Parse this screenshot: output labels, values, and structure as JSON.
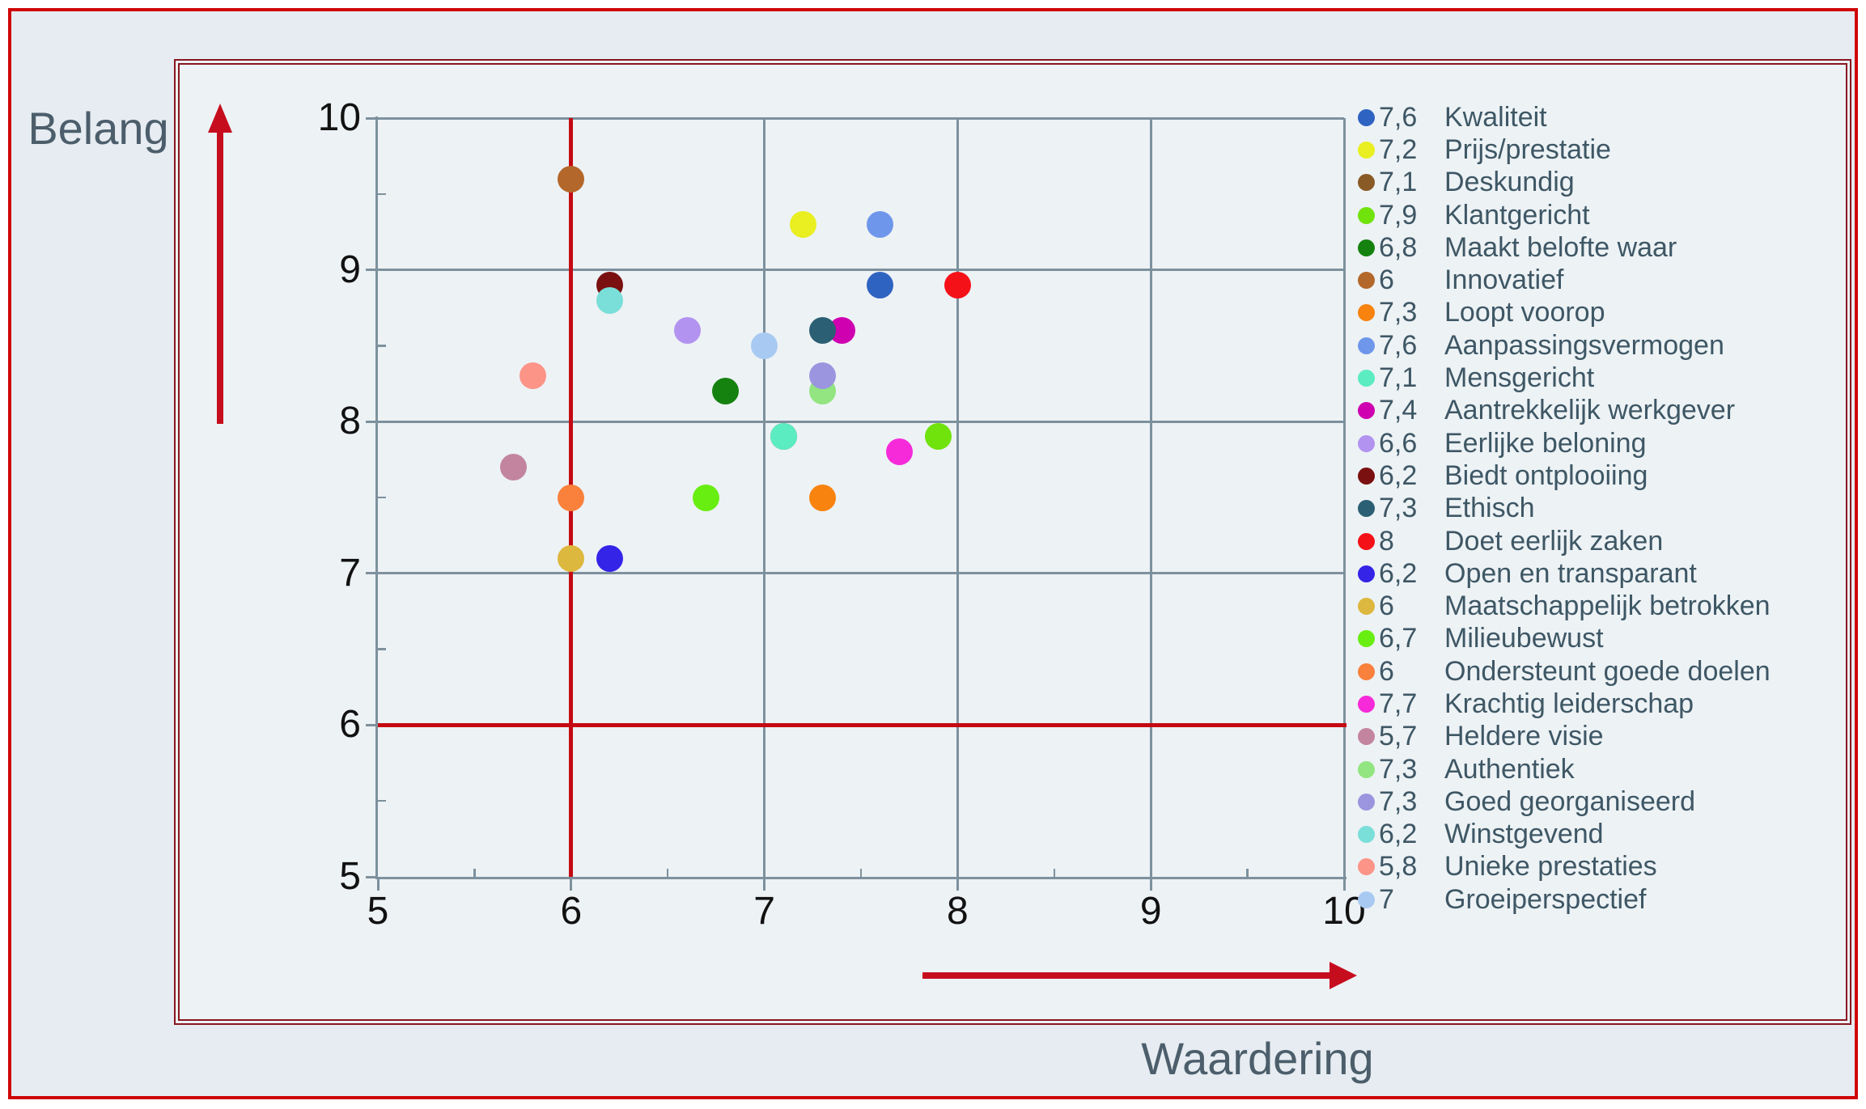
{
  "frame": {
    "ylabel": "Belang",
    "xlabel": "Waardering"
  },
  "colors": {
    "outer_border": "#cf0508",
    "inner_border": "#8a1620",
    "page_bg": "#e6ecf1",
    "panel_bg": "#edf2f5",
    "grid": "#7d919d",
    "crosshair": "#c40a12",
    "arrow": "#c60d1e",
    "tick_text": "#111111",
    "legend_text": "#3e5765",
    "title_text": "#4c5e6b"
  },
  "chart_data": {
    "type": "scatter",
    "xlabel": "Waardering",
    "ylabel": "Belang",
    "xlim": [
      5,
      10
    ],
    "ylim": [
      5,
      10
    ],
    "x_ticks": [
      5,
      6,
      7,
      8,
      9,
      10
    ],
    "y_ticks": [
      10,
      9,
      8,
      7,
      6,
      5
    ],
    "minor_tick_step": 0.5,
    "grid": true,
    "legend_position": "right",
    "crosshair": {
      "x": 6,
      "y": 6
    },
    "series": [
      {
        "label": "Kwaliteit",
        "value_label": "7,6",
        "x": 7.6,
        "y": 8.9,
        "color": "#2f63c1"
      },
      {
        "label": "Prijs/prestatie",
        "value_label": "7,2",
        "x": 7.2,
        "y": 9.3,
        "color": "#e9ef20"
      },
      {
        "label": "Deskundig",
        "value_label": "7,1",
        "x": 7.1,
        "y": 7.9,
        "color": "#8a5a26",
        "hidden": true
      },
      {
        "label": "Klantgericht",
        "value_label": "7,9",
        "x": 7.9,
        "y": 7.9,
        "color": "#70e20c"
      },
      {
        "label": "Maakt belofte waar",
        "value_label": "6,8",
        "x": 6.8,
        "y": 8.2,
        "color": "#15820f"
      },
      {
        "label": "Innovatief",
        "value_label": "6",
        "x": 6.0,
        "y": 9.6,
        "color": "#b4672a"
      },
      {
        "label": "Loopt voorop",
        "value_label": "7,3",
        "x": 7.3,
        "y": 7.5,
        "color": "#f8830e"
      },
      {
        "label": "Aanpassingsvermogen",
        "value_label": "7,6",
        "x": 7.6,
        "y": 9.3,
        "color": "#6e96ea"
      },
      {
        "label": "Mensgericht",
        "value_label": "7,1",
        "x": 7.1,
        "y": 7.9,
        "color": "#5bedc1"
      },
      {
        "label": "Aantrekkelijk werkgever",
        "value_label": "7,4",
        "x": 7.4,
        "y": 8.6,
        "color": "#cf00b0"
      },
      {
        "label": "Eerlijke beloning",
        "value_label": "6,6",
        "x": 6.6,
        "y": 8.6,
        "color": "#b293f0"
      },
      {
        "label": "Biedt ontplooiing",
        "value_label": "6,2",
        "x": 6.2,
        "y": 8.9,
        "color": "#7a1010"
      },
      {
        "label": "Ethisch",
        "value_label": "7,3",
        "x": 7.3,
        "y": 8.6,
        "color": "#2b5f73"
      },
      {
        "label": "Doet eerlijk zaken",
        "value_label": "8",
        "x": 8.0,
        "y": 8.9,
        "color": "#f51118"
      },
      {
        "label": "Open en transparant",
        "value_label": "6,2",
        "x": 6.2,
        "y": 7.1,
        "color": "#3424e8"
      },
      {
        "label": "Maatschappelijk betrokken",
        "value_label": "6",
        "x": 6.0,
        "y": 7.1,
        "color": "#ddb83e"
      },
      {
        "label": "Milieubewust",
        "value_label": "6,7",
        "x": 6.7,
        "y": 7.5,
        "color": "#68ee10"
      },
      {
        "label": "Ondersteunt goede doelen",
        "value_label": "6",
        "x": 6.0,
        "y": 7.5,
        "color": "#f9813c"
      },
      {
        "label": "Krachtig leiderschap",
        "value_label": "7,7",
        "x": 7.7,
        "y": 7.8,
        "color": "#f62ad8"
      },
      {
        "label": "Heldere visie",
        "value_label": "5,7",
        "x": 5.7,
        "y": 7.7,
        "color": "#c384a0"
      },
      {
        "label": "Authentiek",
        "value_label": "7,3",
        "x": 7.3,
        "y": 8.2,
        "color": "#92e580"
      },
      {
        "label": "Goed georganiseerd",
        "value_label": "7,3",
        "x": 7.3,
        "y": 8.3,
        "color": "#9a95de"
      },
      {
        "label": "Winstgevend",
        "value_label": "6,2",
        "x": 6.2,
        "y": 8.8,
        "color": "#79dfd8"
      },
      {
        "label": "Unieke prestaties",
        "value_label": "5,8",
        "x": 5.8,
        "y": 8.3,
        "color": "#fc9488"
      },
      {
        "label": "Groeiperspectief",
        "value_label": "7",
        "x": 7.0,
        "y": 8.5,
        "color": "#a8caf2"
      }
    ]
  }
}
